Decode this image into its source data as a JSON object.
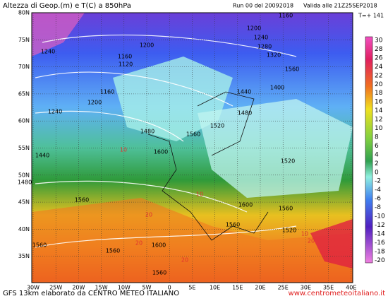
{
  "header": {
    "title": "Altezza di Geop.(m) e T(C) a 850hPa",
    "run": "Run 00 del 20092018",
    "valid": "Valida alle 21Z25SEP2018",
    "step": "T=+ 141"
  },
  "legend": {
    "labels": [
      "30",
      "28",
      "26",
      "24",
      "22",
      "20",
      "18",
      "16",
      "14",
      "12",
      "10",
      "8",
      "6",
      "4",
      "2",
      "0",
      "-2",
      "-4",
      "-6",
      "-8",
      "-10",
      "-12",
      "-14",
      "-16",
      "-18",
      "-20"
    ]
  },
  "axes": {
    "lat": [
      "80N",
      "75N",
      "70N",
      "65N",
      "60N",
      "55N",
      "50N",
      "45N",
      "40N",
      "35N"
    ],
    "lon": [
      "30W",
      "25W",
      "20W",
      "15W",
      "10W",
      "5W",
      "0",
      "5E",
      "10E",
      "15E",
      "20E",
      "25E",
      "30E",
      "35E",
      "40E"
    ]
  },
  "contours": [
    "1160",
    "1200",
    "1240",
    "1280",
    "1320",
    "1240",
    "1200",
    "1160",
    "1120",
    "1560",
    "1400",
    "1160",
    "1200",
    "1440",
    "1480",
    "1240",
    "1520",
    "1560",
    "1480",
    "1600",
    "1440",
    "1520",
    "1480",
    "1560",
    "1600",
    "1560",
    "1560",
    "1560",
    "1600",
    "1560",
    "1520",
    "1560"
  ],
  "temps": [
    "10",
    "10",
    "20",
    "20",
    "20",
    "10",
    "20"
  ],
  "footer": {
    "source": "GFS 13km elaborato da CENTRO METEO ITALIANO",
    "site": "www.centrometeoitaliano.it"
  }
}
